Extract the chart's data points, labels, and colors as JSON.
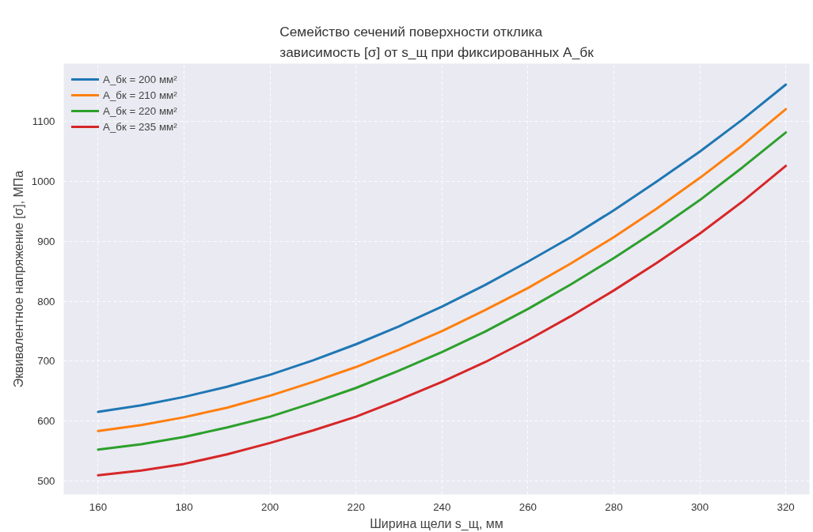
{
  "chart_data": {
    "type": "line",
    "title": "Семейство сечений поверхности отклика\nзависимость [σ] от s_щ при фиксированных А_бк",
    "xlabel": "Ширина щели s_щ, мм",
    "ylabel": "Эквивалентное напряжение [σ], МПа",
    "x": [
      160,
      170,
      180,
      190,
      200,
      210,
      220,
      230,
      240,
      250,
      260,
      270,
      280,
      290,
      300,
      310,
      320
    ],
    "series": [
      {
        "name": "А_бк = 200 мм²",
        "color": "#1f77b4",
        "values": [
          615,
          626,
          640,
          657,
          677,
          701,
          728,
          758,
          791,
          827,
          866,
          907,
          952,
          1000,
          1050,
          1104,
          1162
        ]
      },
      {
        "name": "А_бк = 210 мм²",
        "color": "#ff7f0e",
        "values": [
          583,
          593,
          606,
          622,
          642,
          665,
          690,
          719,
          750,
          785,
          822,
          863,
          907,
          955,
          1006,
          1061,
          1121
        ]
      },
      {
        "name": "А_бк = 220 мм²",
        "color": "#2ca02c",
        "values": [
          552,
          561,
          573,
          589,
          607,
          630,
          655,
          684,
          715,
          749,
          787,
          828,
          872,
          919,
          969,
          1024,
          1082
        ]
      },
      {
        "name": "А_бк = 235 мм²",
        "color": "#d62728",
        "values": [
          509,
          517,
          528,
          544,
          563,
          584,
          607,
          635,
          665,
          698,
          735,
          775,
          818,
          864,
          913,
          967,
          1026
        ]
      }
    ],
    "xlim": [
      152,
      325.5
    ],
    "ylim": [
      477,
      1197
    ],
    "xticks": [
      160,
      180,
      200,
      220,
      240,
      260,
      280,
      300,
      320
    ],
    "yticks": [
      500,
      600,
      700,
      800,
      900,
      1000,
      1100
    ],
    "grid": true,
    "legend": "top left",
    "line_style": "solid",
    "marker": "none"
  }
}
